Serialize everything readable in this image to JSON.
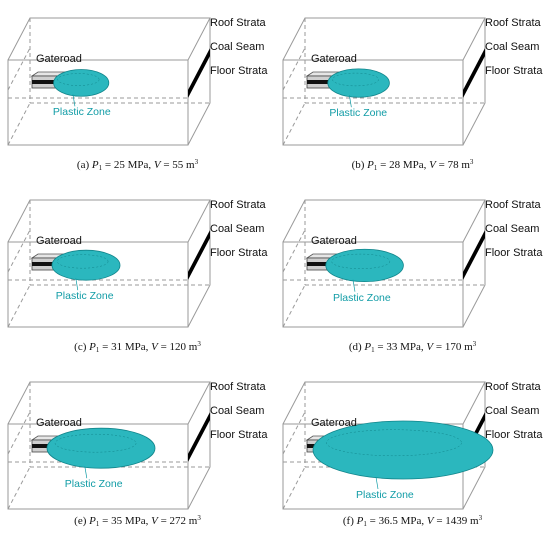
{
  "labels": {
    "roof": "Roof Strata",
    "coal": "Coal Seam",
    "floor": "Floor Strata",
    "gateroad": "Gateroad",
    "plastic": "Plastic Zone"
  },
  "colors": {
    "plastic_zone": "#2bb7be",
    "plastic_zone_dark": "#11858b",
    "plastic_label": "#119ca6",
    "box_line": "#9a9a9a",
    "coal_seam": "#000000"
  },
  "panels": [
    {
      "tag": "(a)",
      "p_sym": "P",
      "p_sub": "1",
      "p_eq": " = 25 MPa, ",
      "v_sym": "V",
      "v_eq": " = 55 m",
      "v_sup": "3",
      "zone_scale": 0.22
    },
    {
      "tag": "(b)",
      "p_sym": "P",
      "p_sub": "1",
      "p_eq": " = 28 MPa, ",
      "v_sym": "V",
      "v_eq": " = 78 m",
      "v_sup": "3",
      "zone_scale": 0.26
    },
    {
      "tag": "(c)",
      "p_sym": "P",
      "p_sub": "1",
      "p_eq": " = 31 MPa, ",
      "v_sym": "V",
      "v_eq": " = 120 m",
      "v_sup": "3",
      "zone_scale": 0.3
    },
    {
      "tag": "(d)",
      "p_sym": "P",
      "p_sub": "1",
      "p_eq": " = 33 MPa, ",
      "v_sym": "V",
      "v_eq": " = 170 m",
      "v_sup": "3",
      "zone_scale": 0.36
    },
    {
      "tag": "(e)",
      "p_sym": "P",
      "p_sub": "1",
      "p_eq": " = 35 MPa, ",
      "v_sym": "V",
      "v_eq": " = 272 m",
      "v_sup": "3",
      "zone_scale": 0.55
    },
    {
      "tag": "(f)",
      "p_sym": "P",
      "p_sub": "1",
      "p_eq": " = 36.5 MPa, ",
      "v_sym": "V",
      "v_eq": " = 1439 m",
      "v_sup": "3",
      "zone_scale": 1.0
    }
  ]
}
